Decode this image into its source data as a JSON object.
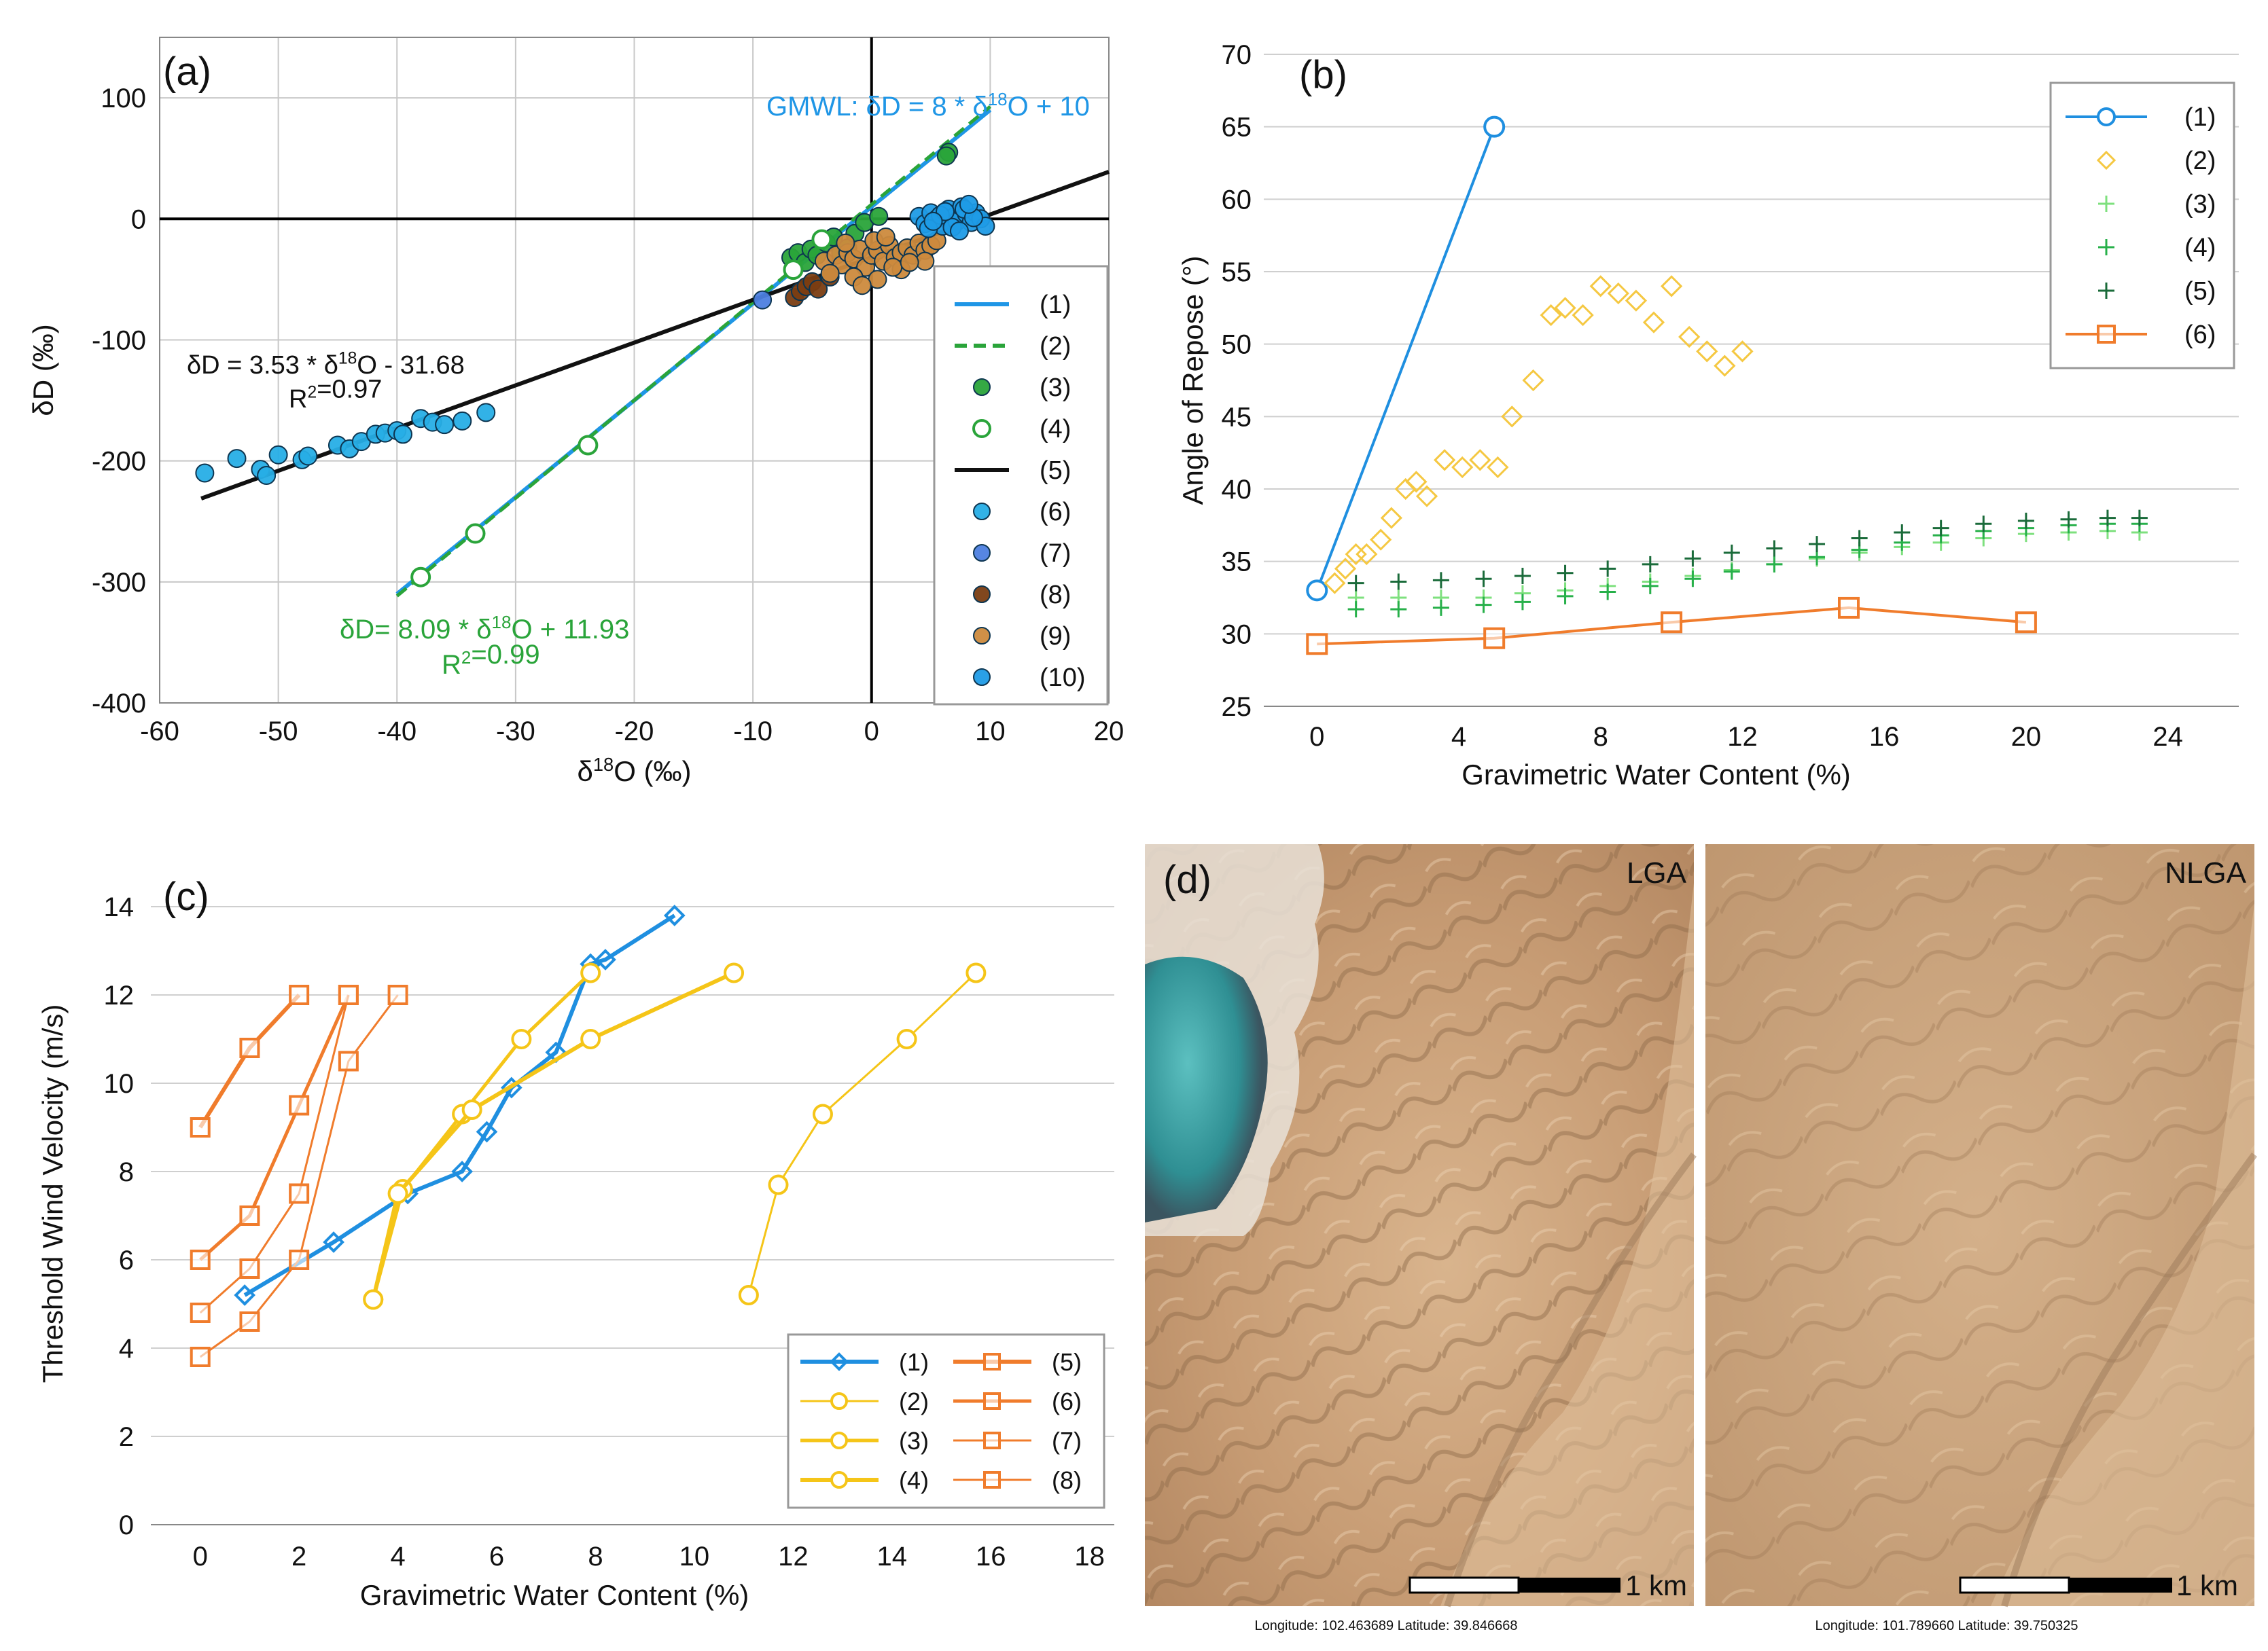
{
  "figure": {
    "panels": [
      "(a)",
      "(b)",
      "(c)",
      "(d)"
    ]
  },
  "chart_data": [
    {
      "id": "a",
      "type": "scatter",
      "panel_label": "(a)",
      "xlabel": "δ18O (‰)",
      "ylabel": "δD (‰)",
      "xlim": [
        -60,
        20
      ],
      "ylim": [
        -400,
        150
      ],
      "x_ticks": [
        "-60",
        "-50",
        "-40",
        "-30",
        "-20",
        "-10",
        "0",
        "10",
        "20"
      ],
      "y_ticks": [
        "100",
        "0",
        "-100",
        "-200",
        "-300",
        "-400"
      ],
      "legend": [
        "(1)",
        "(2)",
        "(3)",
        "(4)",
        "(5)",
        "(6)",
        "(7)",
        "(8)",
        "(9)",
        "(10)"
      ],
      "annotations": {
        "gmwl": "GMWL: δD = 8 * δ18O + 10",
        "eq5": "δD = 3.53 * δ18O - 31.68",
        "r2_5": "R2=0.97",
        "eq2": "δD= 8.09 * δ18O + 11.93",
        "r2_2": "R2=0.99"
      },
      "series": [
        {
          "name": "(1)",
          "kind": "line",
          "color": "#1f96e6",
          "x": [
            -40,
            10
          ],
          "y": [
            -310,
            90
          ]
        },
        {
          "name": "(2)",
          "kind": "dashed-line",
          "color": "#2aa43a",
          "x": [
            -40,
            10
          ],
          "y": [
            -311.67,
            92.83
          ]
        },
        {
          "name": "(3)",
          "kind": "points-filled",
          "color": "#2aa43a",
          "x": [
            -6.8,
            -6.2,
            -5.6,
            -5.1,
            -4.6,
            -3.8,
            -3.2,
            -2.6,
            -2.0,
            -1.4,
            -0.6,
            0.6,
            6.5,
            6.3
          ],
          "y": [
            -32,
            -28,
            -36,
            -25,
            -30,
            -20,
            -15,
            -28,
            -24,
            -12,
            -3,
            2,
            55,
            52
          ]
        },
        {
          "name": "(4)",
          "kind": "points-hollow",
          "color": "#2aa43a",
          "x": [
            -38,
            -33.4,
            -23.9,
            -6.6,
            -4.2
          ],
          "y": [
            -296,
            -260,
            -187,
            -42,
            -17
          ]
        },
        {
          "name": "(5)",
          "kind": "line",
          "color": "#111111",
          "x": [
            -56.5,
            20
          ],
          "y": [
            -231.1,
            38.9
          ]
        },
        {
          "name": "(6)",
          "kind": "points-filled",
          "color": "#27aee6",
          "x": [
            -56.2,
            -53.5,
            -51.5,
            -51,
            -50,
            -48,
            -47.5,
            -45,
            -44,
            -43,
            -41.8,
            -41,
            -40,
            -39.5,
            -38,
            -37,
            -36,
            -34.5,
            -32.5
          ],
          "y": [
            -210,
            -198,
            -207,
            -212,
            -195,
            -199,
            -196,
            -187,
            -190,
            -184,
            -178,
            -177,
            -175,
            -178,
            -165,
            -168,
            -170,
            -167,
            -160
          ]
        },
        {
          "name": "(7)",
          "kind": "points-filled",
          "color": "#4d7fe0",
          "x": [
            -9.2
          ],
          "y": [
            -67
          ]
        },
        {
          "name": "(8)",
          "kind": "points-filled",
          "color": "#7a3d12",
          "x": [
            -6.5,
            -6.0,
            -5.5,
            -5.0,
            -4.5,
            -3.5
          ],
          "y": [
            -65,
            -60,
            -56,
            -52,
            -58,
            -48
          ]
        },
        {
          "name": "(9)",
          "kind": "points-filled",
          "color": "#cc8a3d",
          "x": [
            -4,
            -3,
            -2.5,
            -2,
            -1.5,
            -1,
            -0.5,
            0,
            0.5,
            1,
            1.5,
            2,
            2.5,
            3,
            3.5,
            4,
            4.5,
            5,
            5.5,
            -3.5,
            -1.5,
            0.5,
            2.5,
            4.5,
            -2.2,
            0.2,
            1.8,
            3.2,
            -0.8,
            1.2
          ],
          "y": [
            -35,
            -30,
            -38,
            -28,
            -33,
            -25,
            -40,
            -30,
            -26,
            -35,
            -22,
            -32,
            -28,
            -24,
            -30,
            -20,
            -26,
            -22,
            -18,
            -45,
            -48,
            -50,
            -42,
            -35,
            -20,
            -18,
            -40,
            -36,
            -55,
            -15
          ]
        },
        {
          "name": "(10)",
          "kind": "points-filled",
          "color": "#1f9be6",
          "x": [
            4,
            4.5,
            5,
            5.5,
            6,
            6.5,
            7,
            7.2,
            7.6,
            8,
            8.4,
            8.8,
            9.2,
            9.6,
            4.8,
            5.8,
            6.8,
            7.8,
            8.6,
            6.2,
            7.4,
            5.2,
            8.2
          ],
          "y": [
            2,
            -4,
            5,
            0,
            -6,
            8,
            2,
            -2,
            10,
            4,
            -3,
            5,
            0,
            -6,
            -8,
            3,
            -7,
            8,
            1,
            6,
            -10,
            -2,
            12
          ]
        }
      ]
    },
    {
      "id": "b",
      "type": "scatter",
      "panel_label": "(b)",
      "xlabel": "Gravimetric Water Content (%)",
      "ylabel": "Angle of Repose (°)",
      "xlim": [
        -1.5,
        26
      ],
      "ylim": [
        25,
        70
      ],
      "x_ticks": [
        "0",
        "4",
        "8",
        "12",
        "16",
        "20",
        "24"
      ],
      "y_ticks": [
        "70",
        "65",
        "60",
        "55",
        "50",
        "45",
        "40",
        "35",
        "30",
        "25"
      ],
      "legend": [
        "(1)",
        "(2)",
        "(3)",
        "(4)",
        "(5)",
        "(6)"
      ],
      "series": [
        {
          "name": "(1)",
          "kind": "line-circle",
          "color": "#1f8fe0",
          "x": [
            0,
            5
          ],
          "y": [
            33,
            65
          ]
        },
        {
          "name": "(2)",
          "kind": "diamond-hollow",
          "color": "#f5c842",
          "x": [
            0.5,
            0.8,
            1.1,
            1.4,
            1.8,
            2.1,
            2.5,
            2.8,
            3.1,
            3.6,
            4.1,
            4.6,
            5.1,
            5.5,
            6.1,
            6.6,
            7.0,
            7.5,
            8.0,
            8.5,
            9.0,
            9.5,
            10.0,
            10.5,
            11.0,
            11.5,
            12.0
          ],
          "y": [
            33.5,
            34.5,
            35.5,
            35.5,
            36.5,
            38,
            40,
            40.5,
            39.5,
            42,
            41.5,
            42,
            41.5,
            45,
            47.5,
            52,
            52.5,
            52,
            54,
            53.5,
            53,
            51.5,
            54,
            50.5,
            49.5,
            48.5,
            49.5
          ]
        },
        {
          "name": "(3)",
          "kind": "plus",
          "color": "#7ee07e",
          "x": [
            1.1,
            2.3,
            3.5,
            4.7,
            5.8,
            7.0,
            8.2,
            9.4,
            10.6,
            11.7,
            12.9,
            14.1,
            15.3,
            16.5,
            17.6,
            18.8,
            20.0,
            21.2,
            22.3,
            23.2
          ],
          "y": [
            32.5,
            32.5,
            32.5,
            32.5,
            32.8,
            33,
            33.3,
            33.6,
            34.0,
            34.4,
            34.8,
            35.2,
            35.6,
            36.0,
            36.3,
            36.6,
            36.9,
            37.0,
            37.1,
            37.0
          ]
        },
        {
          "name": "(4)",
          "kind": "plus",
          "color": "#27b04a",
          "x": [
            1.1,
            2.3,
            3.5,
            4.7,
            5.8,
            7.0,
            8.2,
            9.4,
            10.6,
            11.7,
            12.9,
            14.1,
            15.3,
            16.5,
            17.6,
            18.8,
            20.0,
            21.2,
            22.3,
            23.2
          ],
          "y": [
            31.7,
            31.7,
            31.8,
            32.0,
            32.2,
            32.6,
            32.9,
            33.3,
            33.8,
            34.3,
            34.8,
            35.3,
            35.8,
            36.3,
            36.8,
            37.1,
            37.3,
            37.5,
            37.6,
            37.6
          ]
        },
        {
          "name": "(5)",
          "kind": "plus",
          "color": "#1a6b3a",
          "x": [
            1.1,
            2.3,
            3.5,
            4.7,
            5.8,
            7.0,
            8.2,
            9.4,
            10.6,
            11.7,
            12.9,
            14.1,
            15.3,
            16.5,
            17.6,
            18.8,
            20.0,
            21.2,
            22.3,
            23.2
          ],
          "y": [
            33.5,
            33.6,
            33.7,
            33.8,
            34.0,
            34.2,
            34.5,
            34.8,
            35.2,
            35.6,
            35.9,
            36.2,
            36.6,
            37.0,
            37.3,
            37.6,
            37.8,
            37.9,
            38.0,
            38.0
          ]
        },
        {
          "name": "(6)",
          "kind": "line-square",
          "color": "#f07c2c",
          "x": [
            0,
            5,
            10,
            15,
            20
          ],
          "y": [
            29.3,
            29.7,
            30.8,
            31.8,
            30.8
          ]
        }
      ]
    },
    {
      "id": "c",
      "type": "line",
      "panel_label": "(c)",
      "xlabel": "Gravimetric Water Content (%)",
      "ylabel": "Threshold Wind Velocity (m/s)",
      "xlim": [
        -1,
        18.5
      ],
      "ylim": [
        0,
        15
      ],
      "x_ticks": [
        "0",
        "2",
        "4",
        "6",
        "8",
        "10",
        "12",
        "14",
        "16",
        "18"
      ],
      "y_ticks": [
        "14",
        "12",
        "10",
        "8",
        "6",
        "4",
        "2",
        "0"
      ],
      "legend": [
        "(1)",
        "(2)",
        "(3)",
        "(4)",
        "(5)",
        "(6)",
        "(7)",
        "(8)"
      ],
      "series": [
        {
          "name": "(1)",
          "kind": "line-diamond",
          "color": "#1f8fe0",
          "x": [
            0.9,
            2.7,
            4.2,
            5.3,
            5.8,
            6.3,
            7.2,
            7.9,
            8.2,
            9.6
          ],
          "y": [
            5.2,
            6.4,
            7.5,
            8.0,
            8.9,
            9.9,
            10.7,
            12.7,
            12.8,
            13.8
          ]
        },
        {
          "name": "(2)",
          "kind": "line-circle",
          "color": "#f5c518",
          "x": [
            11.1,
            11.7,
            12.6,
            14.3,
            15.7
          ],
          "y": [
            5.2,
            7.7,
            9.3,
            11.0,
            12.5
          ]
        },
        {
          "name": "(3)",
          "kind": "line-circle",
          "color": "#f5c518",
          "x": [
            3.5,
            4.1,
            5.3,
            6.5,
            7.9
          ],
          "y": [
            5.1,
            7.6,
            9.3,
            11.0,
            12.5
          ]
        },
        {
          "name": "(4)",
          "kind": "line-circle",
          "color": "#f5c518",
          "x": [
            3.5,
            4.0,
            5.5,
            7.9,
            10.8
          ],
          "y": [
            5.1,
            7.5,
            9.4,
            11.0,
            12.5
          ]
        },
        {
          "name": "(5)",
          "kind": "line-square",
          "color": "#f07c2c",
          "x": [
            0,
            1,
            2
          ],
          "y": [
            9.0,
            10.8,
            12.0
          ]
        },
        {
          "name": "(6)",
          "kind": "line-square",
          "color": "#f07c2c",
          "x": [
            0,
            1,
            2,
            3
          ],
          "y": [
            6.0,
            7.0,
            9.5,
            12.0
          ]
        },
        {
          "name": "(7)",
          "kind": "line-square",
          "color": "#f07c2c",
          "x": [
            0,
            1,
            2,
            3
          ],
          "y": [
            4.8,
            5.8,
            7.5,
            12.0
          ]
        },
        {
          "name": "(8)",
          "kind": "line-square",
          "color": "#f07c2c",
          "x": [
            0,
            1,
            2,
            3,
            4
          ],
          "y": [
            3.8,
            4.6,
            6.0,
            10.5,
            12.0
          ]
        }
      ]
    }
  ],
  "panel_d": {
    "label": "(d)",
    "left": {
      "tag": "LGA",
      "scale": "1 km",
      "coords": "Longitude: 102.463689 Latitude: 39.846668"
    },
    "right": {
      "tag": "NLGA",
      "scale": "1 km",
      "coords": "Longitude: 101.789660 Latitude: 39.750325"
    }
  }
}
